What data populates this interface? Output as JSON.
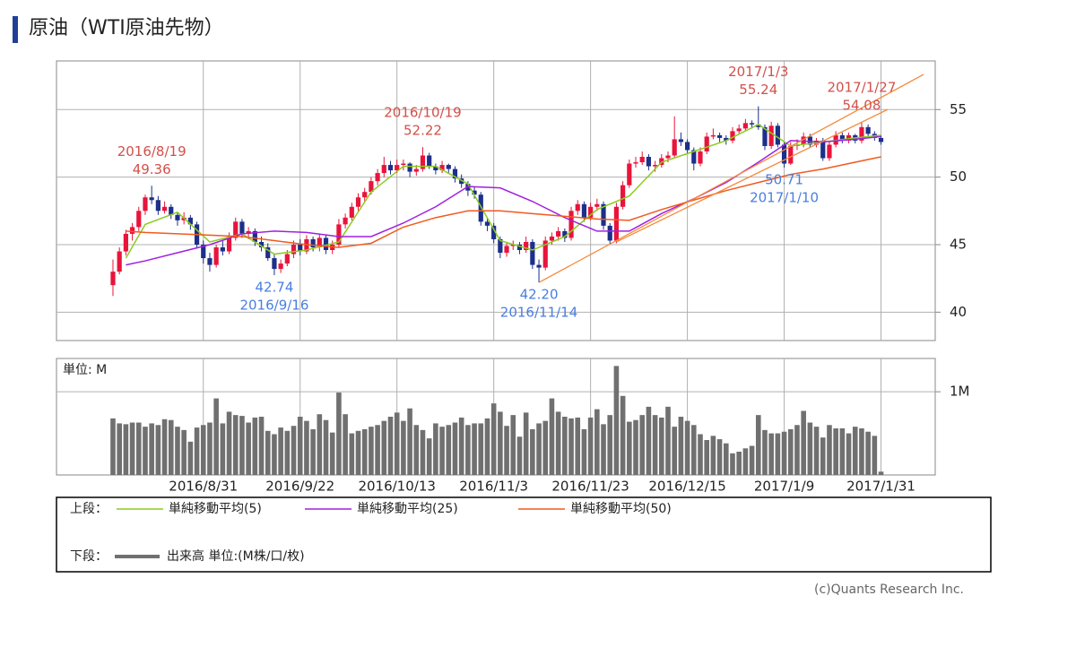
{
  "chart_data": {
    "type": "candlestick",
    "title": "原油（WTI原油先物）",
    "up_color": "#e8143c",
    "down_color": "#1c2f8a",
    "xlim": [
      -8.75,
      127.4
    ],
    "xticks": [
      {
        "value": 14,
        "label": "2016/8/31"
      },
      {
        "value": 29,
        "label": "2016/9/22"
      },
      {
        "value": 44,
        "label": "2016/10/13"
      },
      {
        "value": 59,
        "label": "2016/11/3"
      },
      {
        "value": 74,
        "label": "2016/11/23"
      },
      {
        "value": 89,
        "label": "2016/12/15"
      },
      {
        "value": 104,
        "label": "2017/1/9"
      },
      {
        "value": 119,
        "label": "2017/1/31"
      }
    ],
    "ylim": [
      37.9,
      58.6
    ],
    "yticks": [
      40,
      45,
      50,
      55
    ],
    "grid": true,
    "ohlc": [
      [
        42.0,
        43.9,
        41.2,
        43.0
      ],
      [
        43.0,
        44.8,
        42.8,
        44.5
      ],
      [
        44.5,
        46.1,
        44.2,
        45.8
      ],
      [
        45.8,
        46.6,
        45.3,
        46.3
      ],
      [
        46.3,
        47.8,
        46.0,
        47.5
      ],
      [
        47.5,
        48.7,
        47.2,
        48.5
      ],
      [
        48.5,
        49.36,
        48.0,
        48.3
      ],
      [
        48.3,
        48.6,
        47.2,
        47.5
      ],
      [
        47.5,
        48.2,
        47.3,
        47.8
      ],
      [
        47.8,
        48.0,
        46.9,
        47.2
      ],
      [
        47.2,
        47.4,
        46.4,
        46.8
      ],
      [
        46.8,
        47.4,
        46.5,
        47.0
      ],
      [
        47.0,
        47.2,
        46.1,
        46.5
      ],
      [
        46.5,
        46.7,
        44.7,
        45.0
      ],
      [
        45.0,
        45.3,
        43.6,
        44.0
      ],
      [
        44.0,
        44.4,
        43.0,
        43.5
      ],
      [
        43.5,
        45.0,
        43.3,
        44.8
      ],
      [
        44.8,
        45.3,
        44.2,
        44.5
      ],
      [
        44.5,
        45.9,
        44.3,
        45.5
      ],
      [
        45.5,
        47.0,
        45.3,
        46.7
      ],
      [
        46.7,
        46.9,
        45.5,
        45.8
      ],
      [
        45.8,
        46.3,
        45.4,
        46.0
      ],
      [
        46.0,
        46.2,
        44.9,
        45.2
      ],
      [
        45.2,
        45.6,
        44.5,
        44.8
      ],
      [
        44.8,
        45.1,
        43.8,
        44.0
      ],
      [
        44.0,
        44.3,
        42.74,
        43.2
      ],
      [
        43.2,
        43.9,
        42.9,
        43.6
      ],
      [
        43.6,
        44.6,
        43.4,
        44.3
      ],
      [
        44.3,
        45.3,
        44.0,
        45.0
      ],
      [
        45.0,
        45.4,
        44.2,
        44.5
      ],
      [
        44.5,
        45.7,
        44.3,
        45.4
      ],
      [
        45.4,
        45.6,
        44.5,
        44.8
      ],
      [
        44.8,
        45.8,
        44.5,
        45.5
      ],
      [
        45.5,
        45.7,
        44.3,
        44.6
      ],
      [
        44.6,
        45.3,
        44.3,
        45.0
      ],
      [
        45.0,
        46.9,
        44.8,
        46.5
      ],
      [
        46.5,
        47.3,
        46.2,
        47.0
      ],
      [
        47.0,
        48.1,
        46.8,
        47.8
      ],
      [
        47.8,
        48.8,
        47.5,
        48.5
      ],
      [
        48.5,
        49.2,
        48.2,
        48.9
      ],
      [
        48.9,
        50.0,
        48.7,
        49.7
      ],
      [
        49.7,
        50.6,
        49.4,
        50.3
      ],
      [
        50.3,
        51.5,
        50.0,
        50.9
      ],
      [
        50.9,
        51.2,
        50.2,
        50.5
      ],
      [
        50.5,
        51.3,
        50.3,
        50.9
      ],
      [
        50.9,
        51.3,
        50.5,
        51.0
      ],
      [
        51.0,
        51.1,
        50.0,
        50.4
      ],
      [
        50.4,
        50.9,
        50.1,
        50.6
      ],
      [
        50.6,
        52.22,
        50.4,
        51.6
      ],
      [
        51.6,
        51.8,
        50.6,
        50.8
      ],
      [
        50.8,
        51.0,
        50.2,
        50.5
      ],
      [
        50.5,
        51.2,
        50.3,
        50.9
      ],
      [
        50.9,
        51.0,
        50.3,
        50.6
      ],
      [
        50.6,
        50.8,
        49.6,
        49.9
      ],
      [
        49.9,
        50.2,
        49.2,
        49.5
      ],
      [
        49.5,
        49.7,
        48.6,
        49.0
      ],
      [
        49.0,
        49.3,
        48.4,
        48.7
      ],
      [
        48.7,
        48.9,
        46.4,
        46.7
      ],
      [
        46.7,
        47.0,
        46.0,
        46.4
      ],
      [
        46.4,
        46.6,
        45.1,
        45.4
      ],
      [
        45.4,
        45.6,
        44.0,
        44.4
      ],
      [
        44.4,
        45.2,
        44.1,
        44.9
      ],
      [
        44.9,
        45.3,
        44.6,
        45.0
      ],
      [
        45.0,
        45.2,
        44.3,
        44.6
      ],
      [
        44.6,
        45.6,
        44.4,
        45.2
      ],
      [
        45.2,
        45.4,
        43.2,
        43.5
      ],
      [
        43.5,
        43.9,
        42.2,
        43.3
      ],
      [
        43.3,
        45.6,
        43.1,
        45.3
      ],
      [
        45.3,
        45.9,
        45.0,
        45.6
      ],
      [
        45.6,
        46.3,
        45.3,
        46.0
      ],
      [
        46.0,
        46.2,
        45.2,
        45.5
      ],
      [
        45.5,
        47.8,
        45.3,
        47.5
      ],
      [
        47.5,
        48.3,
        47.2,
        48.0
      ],
      [
        48.0,
        48.2,
        46.7,
        47.0
      ],
      [
        47.0,
        48.1,
        46.8,
        47.8
      ],
      [
        47.8,
        48.4,
        47.5,
        48.0
      ],
      [
        48.0,
        48.2,
        46.1,
        46.4
      ],
      [
        46.4,
        46.6,
        45.0,
        45.3
      ],
      [
        45.3,
        48.1,
        45.1,
        47.8
      ],
      [
        47.8,
        49.7,
        47.6,
        49.4
      ],
      [
        49.4,
        51.3,
        49.2,
        51.0
      ],
      [
        51.0,
        51.5,
        50.7,
        51.1
      ],
      [
        51.1,
        51.9,
        50.9,
        51.5
      ],
      [
        51.5,
        51.7,
        50.5,
        50.8
      ],
      [
        50.8,
        51.2,
        50.4,
        50.9
      ],
      [
        50.9,
        51.7,
        50.7,
        51.4
      ],
      [
        51.4,
        51.9,
        51.1,
        51.6
      ],
      [
        51.6,
        54.5,
        51.4,
        52.8
      ],
      [
        52.8,
        53.3,
        52.3,
        52.6
      ],
      [
        52.6,
        52.8,
        51.7,
        52.0
      ],
      [
        52.0,
        52.2,
        50.5,
        51.0
      ],
      [
        51.0,
        52.2,
        50.8,
        51.9
      ],
      [
        51.9,
        53.3,
        51.7,
        53.0
      ],
      [
        53.0,
        53.6,
        52.8,
        53.1
      ],
      [
        53.1,
        53.3,
        52.6,
        52.9
      ],
      [
        52.9,
        53.1,
        52.4,
        52.7
      ],
      [
        52.7,
        53.7,
        52.5,
        53.4
      ],
      [
        53.4,
        53.9,
        53.2,
        53.6
      ],
      [
        53.6,
        54.3,
        53.4,
        54.0
      ],
      [
        54.0,
        54.2,
        53.6,
        53.9
      ],
      [
        53.9,
        55.24,
        53.5,
        53.7
      ],
      [
        53.7,
        53.9,
        52.0,
        52.3
      ],
      [
        52.3,
        54.1,
        52.1,
        53.8
      ],
      [
        53.8,
        54.0,
        52.2,
        52.4
      ],
      [
        52.4,
        52.6,
        50.71,
        51.0
      ],
      [
        51.0,
        52.6,
        50.9,
        52.3
      ],
      [
        52.3,
        52.8,
        52.0,
        52.4
      ],
      [
        52.4,
        53.3,
        52.2,
        53.0
      ],
      [
        53.0,
        53.2,
        52.2,
        52.4
      ],
      [
        52.4,
        52.9,
        52.2,
        52.7
      ],
      [
        52.7,
        52.9,
        51.2,
        51.4
      ],
      [
        51.4,
        52.6,
        51.2,
        52.4
      ],
      [
        52.4,
        53.4,
        52.2,
        53.1
      ],
      [
        53.1,
        53.3,
        52.5,
        52.7
      ],
      [
        52.7,
        53.3,
        52.5,
        53.1
      ],
      [
        53.1,
        53.2,
        52.5,
        52.7
      ],
      [
        52.7,
        54.08,
        52.5,
        53.7
      ],
      [
        53.7,
        53.9,
        53.0,
        53.2
      ],
      [
        53.2,
        53.4,
        52.7,
        52.9
      ],
      [
        52.9,
        53.1,
        52.4,
        52.6
      ]
    ],
    "ma_x": [
      2,
      5,
      10,
      15,
      20,
      25,
      30,
      35,
      40,
      45,
      50,
      55,
      60,
      65,
      70,
      75,
      80,
      85,
      90,
      95,
      100,
      105,
      110,
      115,
      119
    ],
    "series": [
      {
        "name": "単純移動平均(5)",
        "color": "#8ccc1e",
        "values": [
          44.0,
          46.5,
          47.4,
          45.2,
          45.8,
          44.3,
          44.6,
          45.2,
          48.9,
          50.8,
          50.8,
          49.5,
          45.3,
          44.6,
          45.6,
          47.6,
          48.6,
          51.1,
          51.9,
          52.7,
          53.9,
          52.3,
          52.6,
          52.9,
          53.1
        ]
      },
      {
        "name": "単純移動平均(25)",
        "color": "#a020e0",
        "values": [
          43.5,
          43.8,
          44.4,
          45.0,
          45.8,
          46.0,
          45.9,
          45.6,
          45.6,
          46.6,
          47.8,
          49.3,
          49.2,
          48.2,
          47.0,
          46.0,
          46.0,
          47.3,
          48.4,
          49.6,
          51.1,
          52.7,
          52.6,
          52.8,
          53.0
        ]
      },
      {
        "name": "単純移動平均(50)",
        "color": "#f05a1e",
        "values": [
          46.0,
          45.9,
          45.8,
          45.7,
          45.6,
          45.3,
          45.0,
          44.8,
          45.1,
          46.3,
          47.0,
          47.5,
          47.5,
          47.3,
          47.1,
          46.9,
          46.8,
          47.6,
          48.3,
          49.0,
          49.6,
          50.2,
          50.6,
          51.1,
          51.5
        ]
      }
    ],
    "trend_color": "#f58a3c",
    "trend_lines": [
      {
        "x": [
          66,
          125.6
        ],
        "y": [
          42.2,
          57.6
        ]
      },
      {
        "x": [
          78,
          120
        ],
        "y": [
          45.2,
          55.0
        ]
      }
    ],
    "high_color": "#d2504a",
    "low_color": "#4a7ee0",
    "annotations": [
      {
        "date": "2016/8/19",
        "value": 49.36
      },
      {
        "date": "2016/9/16",
        "value": 42.74
      },
      {
        "date": "2016/10/19",
        "value": 52.22
      },
      {
        "date": "2016/11/14",
        "value": 42.2,
        "value_label": "42.20"
      },
      {
        "date": "2017/1/3",
        "value": 55.24
      },
      {
        "date": "2017/1/10",
        "value": 50.71
      },
      {
        "date": "2017/1/27",
        "value": 54.08
      }
    ],
    "volume": {
      "unit_label": "単位: M",
      "name": "出来高 単位:(M株/口/枚)",
      "color": "#707070",
      "ylim": [
        0,
        1.4
      ],
      "yticks": [
        {
          "value": 1,
          "label": "1M"
        }
      ],
      "values": [
        0.68,
        0.62,
        0.61,
        0.63,
        0.63,
        0.58,
        0.62,
        0.6,
        0.67,
        0.66,
        0.58,
        0.54,
        0.4,
        0.57,
        0.6,
        0.63,
        0.92,
        0.62,
        0.76,
        0.72,
        0.71,
        0.63,
        0.69,
        0.7,
        0.53,
        0.49,
        0.57,
        0.53,
        0.59,
        0.7,
        0.65,
        0.55,
        0.73,
        0.66,
        0.51,
        0.99,
        0.73,
        0.5,
        0.53,
        0.55,
        0.58,
        0.6,
        0.65,
        0.7,
        0.75,
        0.65,
        0.8,
        0.6,
        0.54,
        0.44,
        0.62,
        0.58,
        0.6,
        0.63,
        0.69,
        0.6,
        0.62,
        0.62,
        0.68,
        0.86,
        0.76,
        0.59,
        0.72,
        0.46,
        0.75,
        0.55,
        0.62,
        0.65,
        0.92,
        0.76,
        0.7,
        0.68,
        0.69,
        0.55,
        0.69,
        0.79,
        0.61,
        0.72,
        1.31,
        0.95,
        0.64,
        0.66,
        0.72,
        0.82,
        0.72,
        0.69,
        0.82,
        0.58,
        0.7,
        0.65,
        0.6,
        0.49,
        0.42,
        0.47,
        0.43,
        0.38,
        0.26,
        0.28,
        0.32,
        0.35,
        0.72,
        0.54,
        0.5,
        0.5,
        0.52,
        0.55,
        0.6,
        0.77,
        0.63,
        0.58,
        0.45,
        0.6,
        0.56,
        0.56,
        0.5,
        0.58,
        0.56,
        0.52,
        0.47,
        0.04
      ]
    },
    "legend_upper_label": "上段：",
    "legend_lower_label": "下段：",
    "copyright": "(c)Quants Research Inc."
  }
}
